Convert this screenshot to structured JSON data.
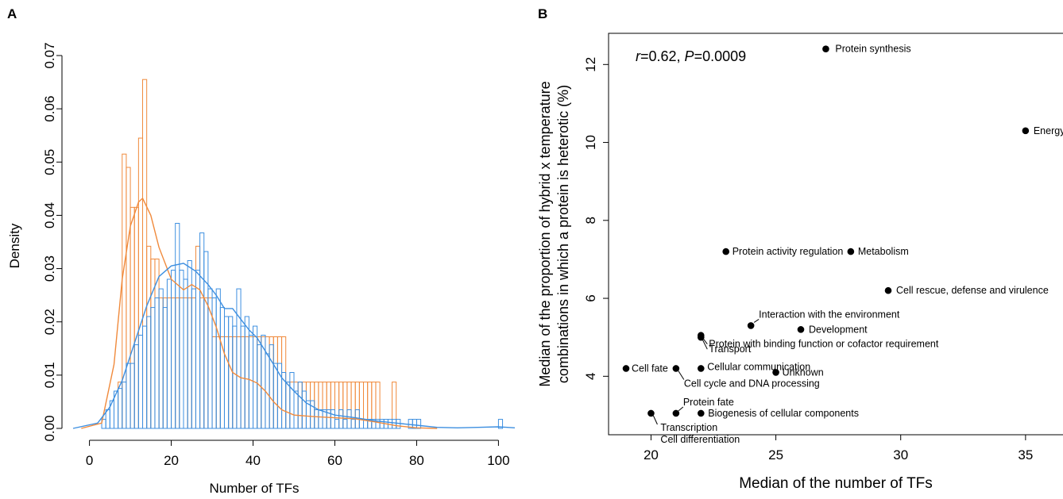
{
  "panels": {
    "a_label": "A",
    "b_label": "B"
  },
  "chart_data": [
    {
      "type": "histogram",
      "panel": "A",
      "xlabel": "Number of TFs",
      "ylabel": "Density",
      "xlim": [
        -4,
        104
      ],
      "ylim": [
        0,
        0.07
      ],
      "xticks": [
        "0",
        "20",
        "40",
        "60",
        "80",
        "100"
      ],
      "yticks": [
        "0.00",
        "0.01",
        "0.02",
        "0.03",
        "0.04",
        "0.05",
        "0.06",
        "0.07"
      ],
      "bin_width": 1,
      "series": [
        {
          "color": "#f08a3c",
          "bins": [
            [
              7,
              0.0087
            ],
            [
              8,
              0.0515
            ],
            [
              9,
              0.049
            ],
            [
              10,
              0.0415
            ],
            [
              11,
              0.0415
            ],
            [
              12,
              0.0545
            ],
            [
              13,
              0.0655
            ],
            [
              14,
              0.0342
            ],
            [
              15,
              0.0318
            ],
            [
              16,
              0.0318
            ],
            [
              17,
              0.0245
            ],
            [
              18,
              0.0245
            ],
            [
              19,
              0.0245
            ],
            [
              20,
              0.0245
            ],
            [
              21,
              0.0245
            ],
            [
              22,
              0.0245
            ],
            [
              23,
              0.0245
            ],
            [
              24,
              0.0245
            ],
            [
              25,
              0.0245
            ],
            [
              26,
              0.0342
            ],
            [
              27,
              0.0245
            ],
            [
              28,
              0.0245
            ],
            [
              29,
              0.0245
            ],
            [
              30,
              0.0172
            ],
            [
              31,
              0.0172
            ],
            [
              32,
              0.0172
            ],
            [
              33,
              0.0172
            ],
            [
              34,
              0.0172
            ],
            [
              35,
              0.0172
            ],
            [
              36,
              0.0172
            ],
            [
              37,
              0.0172
            ],
            [
              38,
              0.0172
            ],
            [
              39,
              0.0172
            ],
            [
              40,
              0.0172
            ],
            [
              41,
              0.0172
            ],
            [
              42,
              0.0172
            ],
            [
              43,
              0.0172
            ],
            [
              44,
              0.0172
            ],
            [
              45,
              0.0172
            ],
            [
              46,
              0.0172
            ],
            [
              47,
              0.0172
            ],
            [
              48,
              0.0087
            ],
            [
              49,
              0.0087
            ],
            [
              50,
              0.0087
            ],
            [
              51,
              0.0087
            ],
            [
              52,
              0.0087
            ],
            [
              53,
              0.0087
            ],
            [
              54,
              0.0087
            ],
            [
              55,
              0.0087
            ],
            [
              56,
              0.0087
            ],
            [
              57,
              0.0087
            ],
            [
              58,
              0.0087
            ],
            [
              59,
              0.0087
            ],
            [
              60,
              0.0087
            ],
            [
              61,
              0.0087
            ],
            [
              62,
              0.0087
            ],
            [
              63,
              0.0087
            ],
            [
              64,
              0.0087
            ],
            [
              65,
              0.0087
            ],
            [
              66,
              0.0087
            ],
            [
              67,
              0.0087
            ],
            [
              68,
              0.0087
            ],
            [
              69,
              0.0087
            ],
            [
              70,
              0.0087
            ],
            [
              74,
              0.0087
            ]
          ],
          "density": [
            [
              -2,
              0
            ],
            [
              3,
              0.001
            ],
            [
              6,
              0.012
            ],
            [
              8,
              0.028
            ],
            [
              10,
              0.038
            ],
            [
              12,
              0.0425
            ],
            [
              13,
              0.0432
            ],
            [
              15,
              0.04
            ],
            [
              17,
              0.034
            ],
            [
              20,
              0.028
            ],
            [
              23,
              0.026
            ],
            [
              25,
              0.027
            ],
            [
              27,
              0.026
            ],
            [
              29,
              0.023
            ],
            [
              31,
              0.019
            ],
            [
              33,
              0.014
            ],
            [
              35,
              0.0105
            ],
            [
              37,
              0.0095
            ],
            [
              39,
              0.0092
            ],
            [
              41,
              0.0085
            ],
            [
              43,
              0.007
            ],
            [
              45,
              0.005
            ],
            [
              47,
              0.0035
            ],
            [
              50,
              0.0025
            ],
            [
              55,
              0.0022
            ],
            [
              60,
              0.002
            ],
            [
              65,
              0.0018
            ],
            [
              70,
              0.0012
            ],
            [
              75,
              0.0005
            ],
            [
              80,
              0.0001
            ],
            [
              85,
              0
            ]
          ]
        },
        {
          "color": "#3d8fe0",
          "bins": [
            [
              3,
              0.0017
            ],
            [
              4,
              0.0035
            ],
            [
              5,
              0.0052
            ],
            [
              6,
              0.007
            ],
            [
              7,
              0.0075
            ],
            [
              8,
              0.0087
            ],
            [
              9,
              0.0122
            ],
            [
              10,
              0.0122
            ],
            [
              11,
              0.0157
            ],
            [
              12,
              0.0175
            ],
            [
              13,
              0.0192
            ],
            [
              14,
              0.021
            ],
            [
              15,
              0.0227
            ],
            [
              16,
              0.0245
            ],
            [
              17,
              0.0262
            ],
            [
              18,
              0.0227
            ],
            [
              19,
              0.028
            ],
            [
              20,
              0.0297
            ],
            [
              21,
              0.0385
            ],
            [
              22,
              0.0297
            ],
            [
              23,
              0.028
            ],
            [
              24,
              0.0315
            ],
            [
              25,
              0.0262
            ],
            [
              26,
              0.0297
            ],
            [
              27,
              0.0367
            ],
            [
              28,
              0.0332
            ],
            [
              29,
              0.0262
            ],
            [
              30,
              0.0245
            ],
            [
              31,
              0.0262
            ],
            [
              32,
              0.0227
            ],
            [
              33,
              0.021
            ],
            [
              34,
              0.021
            ],
            [
              35,
              0.0192
            ],
            [
              36,
              0.0262
            ],
            [
              37,
              0.0192
            ],
            [
              38,
              0.021
            ],
            [
              39,
              0.0175
            ],
            [
              40,
              0.0192
            ],
            [
              41,
              0.0157
            ],
            [
              42,
              0.0175
            ],
            [
              43,
              0.014
            ],
            [
              44,
              0.0157
            ],
            [
              45,
              0.0122
            ],
            [
              46,
              0.0122
            ],
            [
              47,
              0.0105
            ],
            [
              48,
              0.0087
            ],
            [
              49,
              0.0105
            ],
            [
              50,
              0.007
            ],
            [
              51,
              0.0087
            ],
            [
              52,
              0.007
            ],
            [
              53,
              0.0052
            ],
            [
              54,
              0.0052
            ],
            [
              55,
              0.0035
            ],
            [
              56,
              0.0035
            ],
            [
              57,
              0.0035
            ],
            [
              58,
              0.0035
            ],
            [
              59,
              0.0035
            ],
            [
              60,
              0.0017
            ],
            [
              61,
              0.0035
            ],
            [
              62,
              0.0017
            ],
            [
              63,
              0.0035
            ],
            [
              64,
              0.0017
            ],
            [
              65,
              0.0035
            ],
            [
              66,
              0.0017
            ],
            [
              67,
              0.0017
            ],
            [
              68,
              0.0017
            ],
            [
              69,
              0.0017
            ],
            [
              70,
              0.0017
            ],
            [
              71,
              0.0017
            ],
            [
              72,
              0.0017
            ],
            [
              73,
              0.0017
            ],
            [
              74,
              0.0017
            ],
            [
              75,
              0.0017
            ],
            [
              78,
              0.0017
            ],
            [
              79,
              0.0017
            ],
            [
              80,
              0.0017
            ],
            [
              100,
              0.0017
            ]
          ],
          "density": [
            [
              -4,
              0
            ],
            [
              2,
              0.001
            ],
            [
              5,
              0.004
            ],
            [
              8,
              0.009
            ],
            [
              11,
              0.016
            ],
            [
              14,
              0.023
            ],
            [
              17,
              0.0285
            ],
            [
              20,
              0.0305
            ],
            [
              23,
              0.031
            ],
            [
              26,
              0.0295
            ],
            [
              29,
              0.027
            ],
            [
              31,
              0.025
            ],
            [
              33,
              0.0225
            ],
            [
              35,
              0.0225
            ],
            [
              37,
              0.0205
            ],
            [
              39,
              0.0185
            ],
            [
              41,
              0.017
            ],
            [
              43,
              0.0145
            ],
            [
              45,
              0.012
            ],
            [
              47,
              0.0095
            ],
            [
              50,
              0.007
            ],
            [
              53,
              0.0048
            ],
            [
              56,
              0.0035
            ],
            [
              60,
              0.0025
            ],
            [
              65,
              0.002
            ],
            [
              70,
              0.0014
            ],
            [
              75,
              0.001
            ],
            [
              80,
              0.0006
            ],
            [
              85,
              0.0002
            ],
            [
              90,
              0.0001
            ],
            [
              95,
              0.0002
            ],
            [
              100,
              0.0003
            ],
            [
              104,
              0.0001
            ]
          ]
        }
      ]
    },
    {
      "type": "scatter",
      "panel": "B",
      "xlabel": "Median of the number of TFs",
      "ylabel": "Median of the proportion of hybrid x temperature",
      "ylabel2": "combinations in which a protein is heterotic (%)",
      "xlim": [
        18.3,
        36.5
      ],
      "ylim": [
        2.5,
        12.8
      ],
      "xticks": [
        "20",
        "25",
        "30",
        "35"
      ],
      "yticks": [
        "4",
        "6",
        "8",
        "10",
        "12"
      ],
      "annotation": {
        "r_italic": "r",
        "r_rest": "=0.62, ",
        "p_italic": "P",
        "p_rest": "=0.0009"
      },
      "points": [
        {
          "label": "Protein synthesis",
          "x": 27,
          "y": 12.4
        },
        {
          "label": "Energy",
          "x": 35,
          "y": 10.3
        },
        {
          "label": "Protein activity regulation",
          "x": 23,
          "y": 7.2
        },
        {
          "label": "Metabolism",
          "x": 28,
          "y": 7.2
        },
        {
          "label": "Cell rescue, defense and virulence",
          "x": 29.5,
          "y": 6.2
        },
        {
          "label": "Interaction with the environment",
          "x": 24,
          "y": 5.3
        },
        {
          "label": "Development",
          "x": 26,
          "y": 5.2
        },
        {
          "label": "Protein with binding function or cofactor requirement",
          "x": 22,
          "y": 5.05
        },
        {
          "label": "Transport",
          "x": 22,
          "y": 5.0
        },
        {
          "label": "Cellular communication",
          "x": 22,
          "y": 4.2
        },
        {
          "label": "Unknown",
          "x": 25,
          "y": 4.1
        },
        {
          "label": "Cell fate",
          "x": 19,
          "y": 4.2
        },
        {
          "label": "Cell cycle and DNA processing",
          "x": 21,
          "y": 4.2
        },
        {
          "label": "Protein fate",
          "x": 21,
          "y": 3.05
        },
        {
          "label": "Biogenesis of cellular components",
          "x": 22,
          "y": 3.05
        },
        {
          "label": "Transcription",
          "x": 20,
          "y": 3.05
        },
        {
          "label": "Cell differentiation",
          "x": 20,
          "y": 3.05
        }
      ]
    }
  ]
}
